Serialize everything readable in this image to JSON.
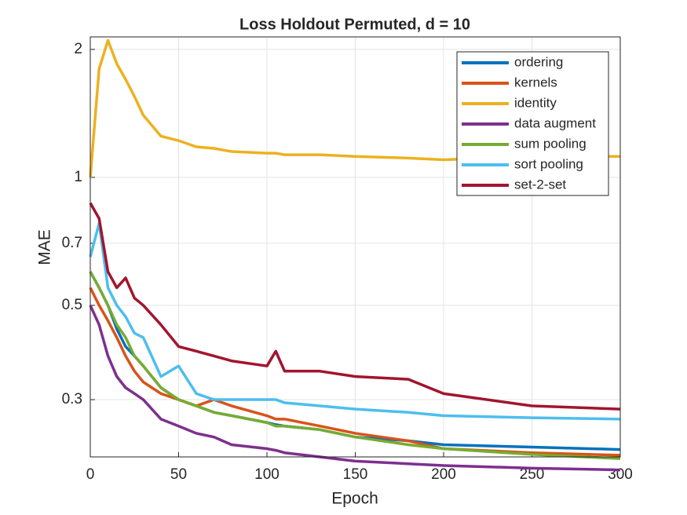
{
  "chart_data": {
    "type": "line",
    "title": "Loss Holdout Permuted, d = 10",
    "xlabel": "Epoch",
    "ylabel": "MAE",
    "x": [
      0,
      5,
      10,
      15,
      20,
      25,
      30,
      40,
      50,
      60,
      70,
      80,
      100,
      105,
      110,
      130,
      150,
      180,
      200,
      250,
      300
    ],
    "series": [
      {
        "name": "ordering",
        "color": "#0072BD",
        "values": [
          0.6,
          0.55,
          0.5,
          0.44,
          0.4,
          0.38,
          0.36,
          0.32,
          0.3,
          0.29,
          0.28,
          0.275,
          0.265,
          0.262,
          0.26,
          0.255,
          0.245,
          0.24,
          0.235,
          0.232,
          0.229
        ]
      },
      {
        "name": "kernels",
        "color": "#D95319",
        "values": [
          0.55,
          0.5,
          0.46,
          0.42,
          0.38,
          0.35,
          0.33,
          0.31,
          0.3,
          0.29,
          0.3,
          0.29,
          0.275,
          0.27,
          0.27,
          0.26,
          0.25,
          0.24,
          0.23,
          0.225,
          0.222
        ]
      },
      {
        "name": "identity",
        "color": "#EDB120",
        "values": [
          1.0,
          1.8,
          2.1,
          1.85,
          1.7,
          1.55,
          1.4,
          1.25,
          1.22,
          1.18,
          1.17,
          1.15,
          1.14,
          1.14,
          1.13,
          1.13,
          1.12,
          1.11,
          1.1,
          1.12,
          1.12
        ]
      },
      {
        "name": "data augment",
        "color": "#7E2F8E",
        "values": [
          0.5,
          0.45,
          0.38,
          0.34,
          0.32,
          0.31,
          0.3,
          0.27,
          0.26,
          0.25,
          0.245,
          0.235,
          0.23,
          0.228,
          0.225,
          0.22,
          0.215,
          0.212,
          0.21,
          0.207,
          0.205
        ]
      },
      {
        "name": "sum pooling",
        "color": "#77AC30",
        "values": [
          0.6,
          0.55,
          0.5,
          0.45,
          0.42,
          0.38,
          0.36,
          0.32,
          0.3,
          0.29,
          0.28,
          0.275,
          0.265,
          0.26,
          0.26,
          0.255,
          0.245,
          0.235,
          0.23,
          0.223,
          0.218
        ]
      },
      {
        "name": "sort pooling",
        "color": "#4DBEEE",
        "values": [
          0.65,
          0.78,
          0.55,
          0.5,
          0.47,
          0.43,
          0.42,
          0.34,
          0.36,
          0.31,
          0.3,
          0.3,
          0.3,
          0.3,
          0.295,
          0.29,
          0.285,
          0.28,
          0.275,
          0.272,
          0.27
        ]
      },
      {
        "name": "set-2-set",
        "color": "#A2142F",
        "values": [
          0.87,
          0.8,
          0.6,
          0.55,
          0.58,
          0.52,
          0.5,
          0.45,
          0.4,
          0.39,
          0.38,
          0.37,
          0.36,
          0.39,
          0.35,
          0.35,
          0.34,
          0.335,
          0.31,
          0.29,
          0.285
        ]
      }
    ],
    "xlim": [
      0,
      300
    ],
    "xticks": [
      0,
      50,
      100,
      150,
      200,
      250,
      300
    ],
    "ylim": [
      0.22,
      2.14
    ],
    "yticks": [
      0.3,
      0.5,
      0.7,
      1,
      2
    ],
    "yscale": "log",
    "grid": true,
    "legend": "northeast"
  }
}
